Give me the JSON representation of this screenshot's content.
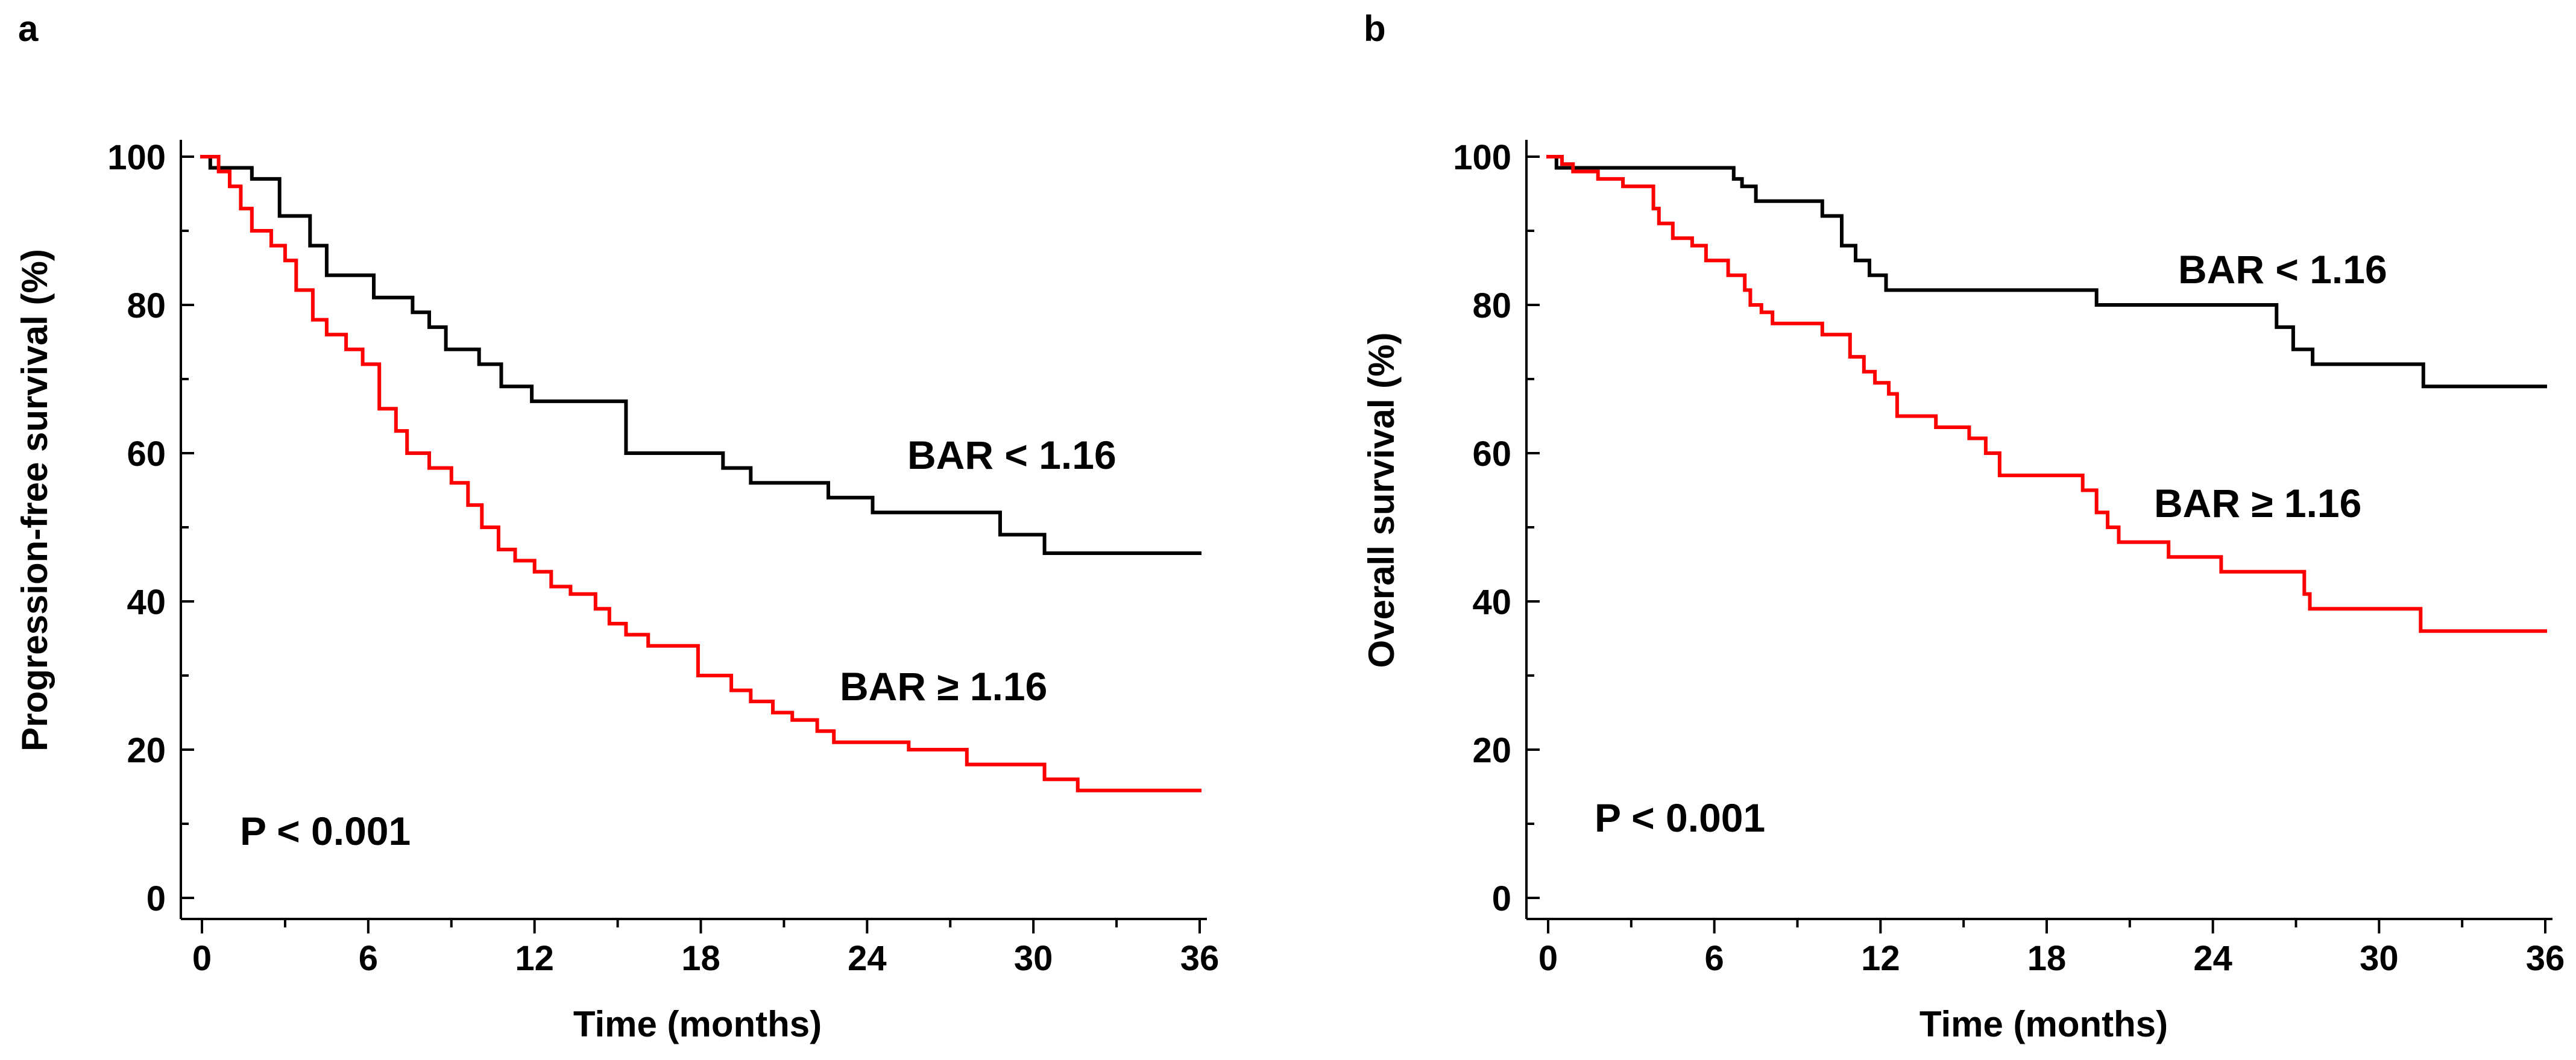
{
  "chart_data": [
    {
      "panel_label": "a",
      "type": "line",
      "step": true,
      "xlabel": "Time (months)",
      "ylabel": "Progression-free survival (%)",
      "xlim": [
        0,
        36
      ],
      "ylim": [
        0,
        100
      ],
      "xticks": [
        0,
        6,
        12,
        18,
        24,
        30,
        36
      ],
      "yticks": [
        0,
        20,
        40,
        60,
        80,
        100
      ],
      "grid": false,
      "annotation": "P < 0.001",
      "series": [
        {
          "name": "BAR < 1.16",
          "color": "#000000",
          "points": [
            [
              0,
              100
            ],
            [
              0.3,
              98.5
            ],
            [
              1.8,
              97
            ],
            [
              2.8,
              92
            ],
            [
              3.9,
              88
            ],
            [
              4.5,
              84
            ],
            [
              6.2,
              81
            ],
            [
              7.6,
              79
            ],
            [
              8.2,
              77
            ],
            [
              8.8,
              74
            ],
            [
              10,
              72
            ],
            [
              10.8,
              69
            ],
            [
              11.9,
              67
            ],
            [
              15.3,
              60
            ],
            [
              18.8,
              58
            ],
            [
              19.8,
              56
            ],
            [
              22.6,
              54
            ],
            [
              24.2,
              52
            ],
            [
              28.8,
              49
            ],
            [
              30.4,
              46.5
            ],
            [
              36,
              46.5
            ]
          ],
          "label": "BAR < 1.16"
        },
        {
          "name": "BAR ≥ 1.16",
          "color": "#ff0000",
          "points": [
            [
              0,
              100
            ],
            [
              0.6,
              98
            ],
            [
              1,
              96
            ],
            [
              1.4,
              93
            ],
            [
              1.8,
              90
            ],
            [
              2.5,
              88
            ],
            [
              3,
              86
            ],
            [
              3.4,
              82
            ],
            [
              4,
              78
            ],
            [
              4.5,
              76
            ],
            [
              5.2,
              74
            ],
            [
              5.8,
              72
            ],
            [
              6.4,
              66
            ],
            [
              7,
              63
            ],
            [
              7.4,
              60
            ],
            [
              8.2,
              58
            ],
            [
              9,
              56
            ],
            [
              9.6,
              53
            ],
            [
              10.1,
              50
            ],
            [
              10.7,
              47
            ],
            [
              11.3,
              45.5
            ],
            [
              12,
              44
            ],
            [
              12.6,
              42
            ],
            [
              13.3,
              41
            ],
            [
              14.2,
              39
            ],
            [
              14.7,
              37
            ],
            [
              15.3,
              35.5
            ],
            [
              16.1,
              34
            ],
            [
              17.9,
              30
            ],
            [
              19.1,
              28
            ],
            [
              19.8,
              26.5
            ],
            [
              20.6,
              25
            ],
            [
              21.3,
              24
            ],
            [
              22.2,
              22.5
            ],
            [
              22.8,
              21
            ],
            [
              25.5,
              20
            ],
            [
              27.6,
              18
            ],
            [
              30.4,
              16
            ],
            [
              31.6,
              14.5
            ],
            [
              36,
              14.5
            ]
          ],
          "label": "BAR ≥ 1.16"
        }
      ]
    },
    {
      "panel_label": "b",
      "type": "line",
      "step": true,
      "xlabel": "Time (months)",
      "ylabel": "Overall survival (%)",
      "xlim": [
        0,
        36
      ],
      "ylim": [
        0,
        100
      ],
      "xticks": [
        0,
        6,
        12,
        18,
        24,
        30,
        36
      ],
      "yticks": [
        0,
        20,
        40,
        60,
        80,
        100
      ],
      "grid": false,
      "annotation": "P < 0.001",
      "series": [
        {
          "name": "BAR < 1.16",
          "color": "#000000",
          "points": [
            [
              0,
              100
            ],
            [
              0.3,
              98.5
            ],
            [
              6.7,
              97
            ],
            [
              7,
              96
            ],
            [
              7.5,
              94
            ],
            [
              9.9,
              92
            ],
            [
              10.6,
              88
            ],
            [
              11.1,
              86
            ],
            [
              11.6,
              84
            ],
            [
              12.2,
              82
            ],
            [
              19.8,
              80
            ],
            [
              26.3,
              77
            ],
            [
              26.9,
              74
            ],
            [
              27.6,
              72
            ],
            [
              31.6,
              69
            ],
            [
              36,
              69
            ]
          ],
          "label": "BAR < 1.16"
        },
        {
          "name": "BAR ≥ 1.16",
          "color": "#ff0000",
          "points": [
            [
              0,
              100
            ],
            [
              0.5,
              99
            ],
            [
              0.9,
              98
            ],
            [
              1.8,
              97
            ],
            [
              2.7,
              96
            ],
            [
              3.8,
              93
            ],
            [
              4,
              91
            ],
            [
              4.5,
              89
            ],
            [
              5.2,
              88
            ],
            [
              5.7,
              86
            ],
            [
              6.5,
              84
            ],
            [
              7.1,
              82
            ],
            [
              7.3,
              80
            ],
            [
              7.7,
              79
            ],
            [
              8.1,
              77.5
            ],
            [
              9.9,
              76
            ],
            [
              10.9,
              73
            ],
            [
              11.4,
              71
            ],
            [
              11.8,
              69.5
            ],
            [
              12.3,
              68
            ],
            [
              12.6,
              65
            ],
            [
              14,
              63.5
            ],
            [
              15.2,
              62
            ],
            [
              15.8,
              60
            ],
            [
              16.3,
              57
            ],
            [
              19.3,
              55
            ],
            [
              19.8,
              52
            ],
            [
              20.2,
              50
            ],
            [
              20.6,
              48
            ],
            [
              22.4,
              46
            ],
            [
              24.3,
              44
            ],
            [
              27.3,
              41
            ],
            [
              27.5,
              39
            ],
            [
              31.5,
              36
            ],
            [
              36,
              36
            ]
          ],
          "label": "BAR ≥ 1.16"
        }
      ]
    }
  ]
}
